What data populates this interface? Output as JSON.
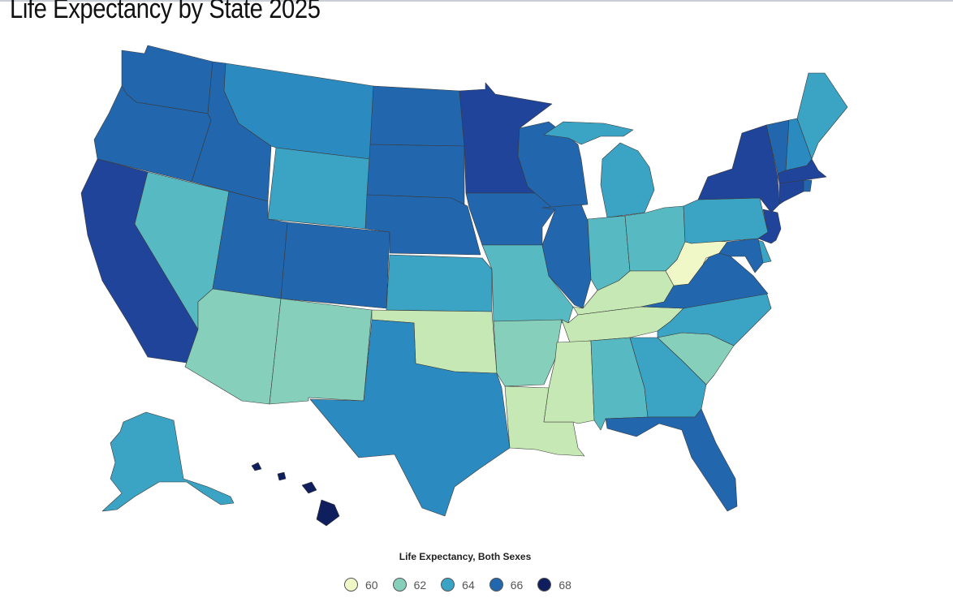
{
  "title": "Life Expectancy by State 2025",
  "legend": {
    "title": "Life Expectancy, Both Sexes",
    "items": [
      {
        "label": "60",
        "color": "#f1f8c8"
      },
      {
        "label": "62",
        "color": "#86d0bb"
      },
      {
        "label": "64",
        "color": "#3ba3c4"
      },
      {
        "label": "66",
        "color": "#2266ad"
      },
      {
        "label": "68",
        "color": "#0f1f5e"
      }
    ]
  },
  "palette": {
    "c60": "#f1f8c8",
    "c61": "#c6e8b4",
    "c62": "#86d0bb",
    "c63": "#57bac3",
    "c64": "#3ba3c4",
    "c65": "#2b8ac0",
    "c66": "#2266ad",
    "c67": "#1f449a",
    "c68": "#0f1f5e"
  },
  "states": {
    "WA": "c66",
    "OR": "c66",
    "CA": "c67",
    "ID": "c66",
    "NV": "c63",
    "MT": "c65",
    "WY": "c64",
    "UT": "c66",
    "AZ": "c62",
    "CO": "c66",
    "NM": "c62",
    "ND": "c66",
    "SD": "c66",
    "NE": "c66",
    "KS": "c64",
    "OK": "c61",
    "TX": "c65",
    "MN": "c67",
    "IA": "c66",
    "MO": "c63",
    "AR": "c62",
    "LA": "c61",
    "WI": "c66",
    "IL": "c66",
    "MI": "c64",
    "IN": "c63",
    "OH": "c63",
    "KY": "c61",
    "TN": "c61",
    "MS": "c61",
    "AL": "c63",
    "GA": "c64",
    "FL": "c66",
    "SC": "c62",
    "NC": "c64",
    "VA": "c66",
    "WV": "c60",
    "PA": "c64",
    "NY": "c67",
    "VT": "c66",
    "NH": "c65",
    "ME": "c64",
    "MA": "c67",
    "CT": "c67",
    "RI": "c66",
    "NJ": "c67",
    "DE": "c64",
    "MD": "c66",
    "AK": "c64",
    "HI": "c68"
  }
}
